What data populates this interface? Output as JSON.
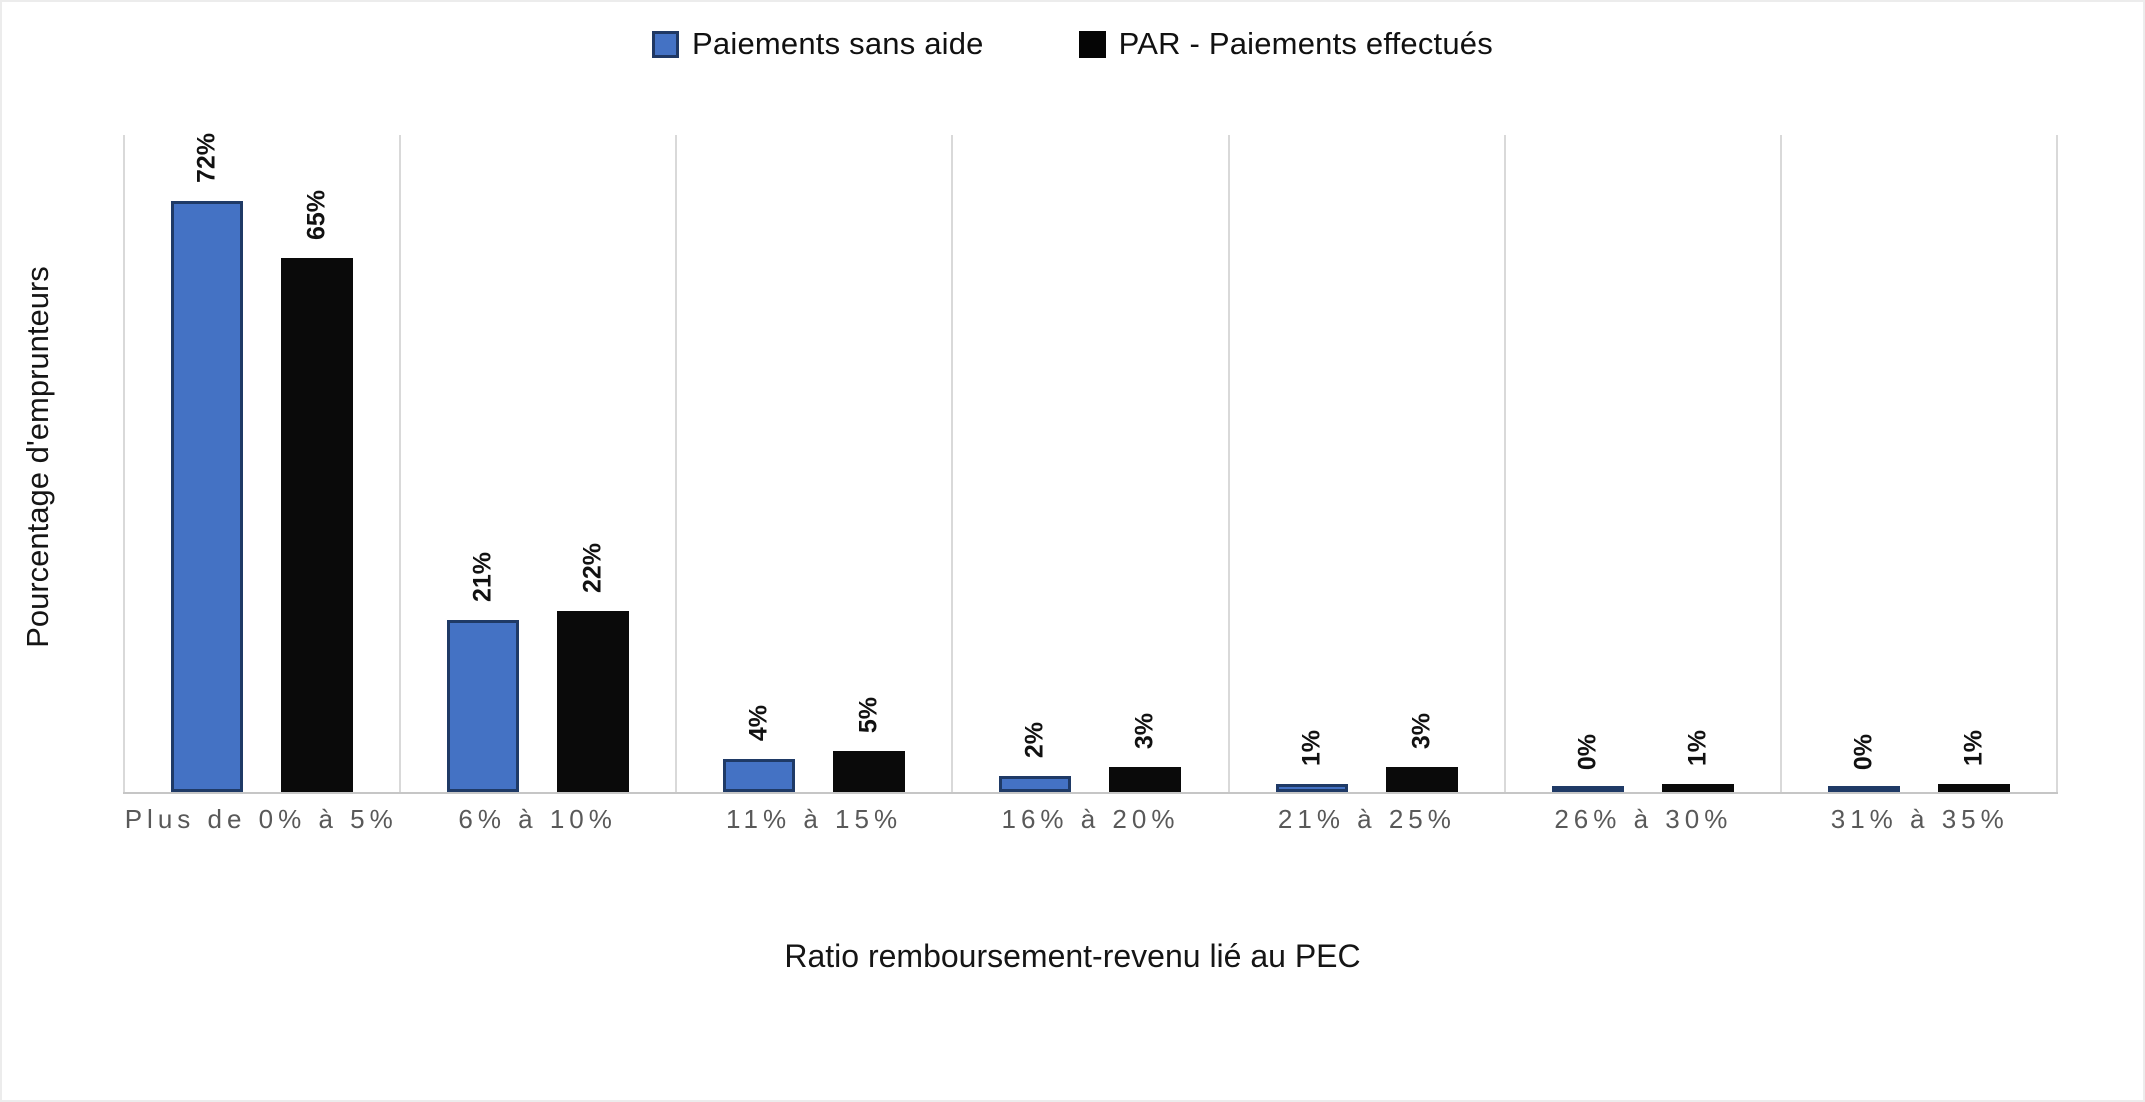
{
  "chart_data": {
    "type": "bar",
    "title": "",
    "categories": [
      "Plus de 0% à 5%",
      "6% à 10%",
      "11% à 15%",
      "16% à 20%",
      "21% à 25%",
      "26% à 30%",
      "31% à 35%"
    ],
    "series": [
      {
        "name": "Paiements sans aide",
        "values": [
          72,
          21,
          4,
          2,
          1,
          0,
          0
        ],
        "labels": [
          "72%",
          "21%",
          "4%",
          "2%",
          "1%",
          "0%",
          "0%"
        ],
        "color": "#4472C4",
        "border_color": "#1F3864"
      },
      {
        "name": "PAR - Paiements effectués",
        "values": [
          65,
          22,
          5,
          3,
          3,
          1,
          1
        ],
        "labels": [
          "65%",
          "22%",
          "5%",
          "3%",
          "3%",
          "1%",
          "1%"
        ],
        "color": "#000000",
        "border_color": "#000000"
      }
    ],
    "xlabel": "Ratio remboursement-revenu lié au PEC",
    "ylabel": "Pourcentage d'emprunteurs",
    "ylim": [
      0,
      80
    ],
    "grid": "vertical-category-separators",
    "legend_position": "top-center",
    "value_labels": {
      "rotation": -90,
      "bold": true,
      "format": "percent"
    }
  },
  "colors": {
    "gridline": "#D9D9D9",
    "axis_line": "#C6C6C6",
    "category_label": "#595959",
    "value_label": "#111111"
  }
}
